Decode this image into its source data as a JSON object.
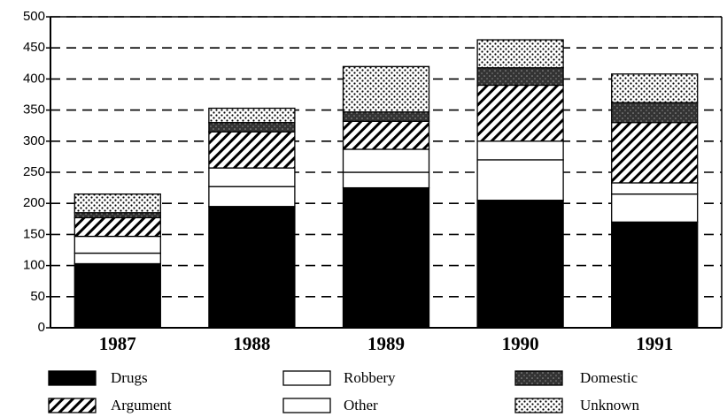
{
  "chart_data": {
    "type": "stacked_bar",
    "categories": [
      "1987",
      "1988",
      "1989",
      "1990",
      "1991"
    ],
    "series": [
      {
        "name": "Drugs",
        "color": "#000000",
        "values": [
          103,
          195,
          225,
          205,
          170
        ]
      },
      {
        "name": "Robbery",
        "color": "#ffffff",
        "values": [
          17,
          32,
          25,
          65,
          45
        ]
      },
      {
        "name": "Other",
        "color": "#ffffff",
        "values": [
          27,
          30,
          37,
          30,
          18
        ]
      },
      {
        "name": "Argument",
        "color": "#000000",
        "pattern": "hatch",
        "values": [
          30,
          58,
          45,
          90,
          97
        ]
      },
      {
        "name": "Domestic",
        "color": "#333333",
        "pattern": "speckle",
        "values": [
          8,
          15,
          15,
          28,
          32
        ]
      },
      {
        "name": "Unknown",
        "color": "#000000",
        "pattern": "dots",
        "values": [
          30,
          23,
          73,
          45,
          46
        ]
      }
    ],
    "legend_order": [
      "Drugs",
      "Argument",
      "Robbery",
      "Other",
      "Domestic",
      "Unknown"
    ],
    "ylim": [
      0,
      500
    ],
    "yticks": [
      0,
      50,
      100,
      150,
      200,
      250,
      300,
      350,
      400,
      450,
      500
    ],
    "grid": true
  }
}
